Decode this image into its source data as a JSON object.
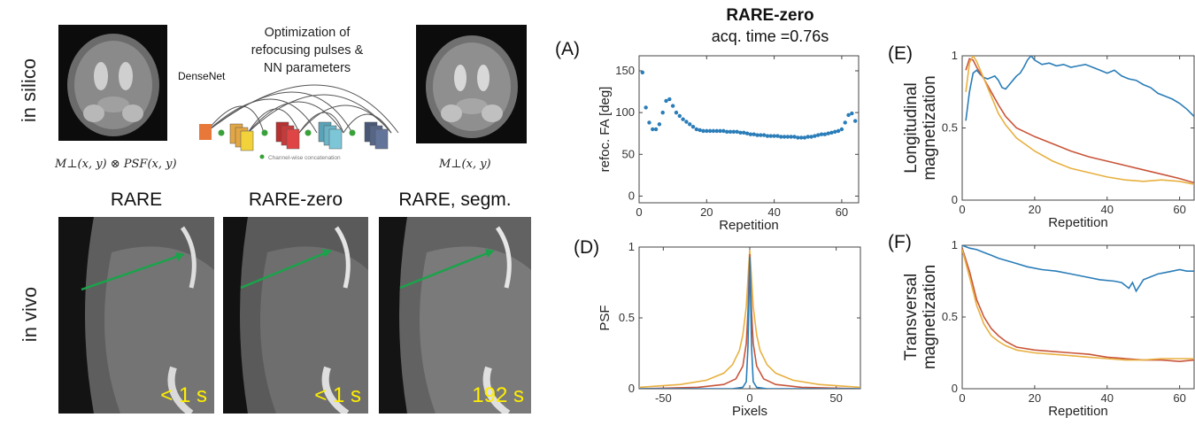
{
  "left": {
    "row_labels": {
      "silico": "in silico",
      "vivo": "in vivo"
    },
    "silico": {
      "input_formula": "M⊥(x, y) ⊗ PSF(x, y)",
      "output_formula": "M⊥(x, y)",
      "densenet_label": "DenseNet",
      "opt_title_l1": "Optimization of",
      "opt_title_l2": "refocusing pulses &",
      "opt_title_l3": "NN parameters",
      "concat_note": "Channel-wise concatenation"
    },
    "vivo": {
      "panels": [
        {
          "title": "RARE",
          "time": "< 1 s"
        },
        {
          "title": "RARE-zero",
          "time": "< 1 s"
        },
        {
          "title": "RARE, segm.",
          "time": "192 s"
        }
      ],
      "time_color": "#ffee00",
      "arrow_color": "#1aa34a"
    }
  },
  "right": {
    "title": "RARE-zero",
    "subtitle": "acq. time =0.76s",
    "panel_labels": {
      "A": "(A)",
      "D": "(D)",
      "E": "(E)",
      "F": "(F)"
    },
    "colors": {
      "blue": "#2a7db8",
      "red": "#c9553a",
      "yellow": "#e8b040"
    }
  },
  "chart_data": [
    {
      "id": "A",
      "type": "scatter",
      "xlabel": "Repetition",
      "ylabel": "refoc. FA [deg]",
      "xlim": [
        0,
        65
      ],
      "ylim": [
        -8,
        168
      ],
      "xticks": [
        0,
        20,
        40,
        60
      ],
      "yticks": [
        0,
        50,
        100,
        150
      ],
      "grid": false,
      "series": [
        {
          "x": [
            1,
            2,
            3,
            4,
            5,
            6,
            7,
            8,
            9,
            10,
            11,
            12,
            13,
            14,
            15,
            16,
            17,
            18,
            19,
            20,
            21,
            22,
            23,
            24,
            25,
            26,
            27,
            28,
            29,
            30,
            31,
            32,
            33,
            34,
            35,
            36,
            37,
            38,
            39,
            40,
            41,
            42,
            43,
            44,
            45,
            46,
            47,
            48,
            49,
            50,
            51,
            52,
            53,
            54,
            55,
            56,
            57,
            58,
            59,
            60,
            61,
            62,
            63,
            64
          ],
          "y": [
            148,
            106,
            88,
            80,
            80,
            86,
            100,
            114,
            116,
            108,
            100,
            96,
            92,
            89,
            86,
            83,
            80,
            79,
            78,
            78,
            78,
            78,
            78,
            78,
            78,
            77,
            77,
            77,
            77,
            76,
            76,
            75,
            74,
            74,
            73,
            73,
            73,
            72,
            72,
            72,
            72,
            71,
            71,
            71,
            71,
            71,
            70,
            70,
            70,
            71,
            71,
            72,
            73,
            74,
            74,
            75,
            76,
            77,
            78,
            80,
            88,
            97,
            99,
            90
          ]
        }
      ]
    },
    {
      "id": "D",
      "type": "line",
      "xlabel": "Pixels",
      "ylabel": "PSF",
      "xlim": [
        -64,
        64
      ],
      "ylim": [
        0,
        1
      ],
      "xticks": [
        -50,
        0,
        50
      ],
      "yticks": [
        0,
        0.5,
        1
      ],
      "grid": false,
      "series": [
        {
          "color": "yellow",
          "x": [
            -64,
            -40,
            -25,
            -15,
            -10,
            -6,
            -4,
            -2,
            -1,
            0,
            1,
            2,
            4,
            6,
            10,
            15,
            25,
            40,
            64
          ],
          "y": [
            0.01,
            0.03,
            0.06,
            0.11,
            0.17,
            0.27,
            0.38,
            0.58,
            0.78,
            0.98,
            0.78,
            0.58,
            0.38,
            0.27,
            0.17,
            0.11,
            0.06,
            0.03,
            0.01
          ]
        },
        {
          "color": "red",
          "x": [
            -64,
            -30,
            -15,
            -8,
            -4,
            -2,
            -1,
            0,
            1,
            2,
            4,
            8,
            15,
            30,
            64
          ],
          "y": [
            0.0,
            0.01,
            0.03,
            0.07,
            0.16,
            0.32,
            0.55,
            0.95,
            0.55,
            0.32,
            0.16,
            0.07,
            0.03,
            0.01,
            0.0
          ]
        },
        {
          "color": "blue",
          "x": [
            -64,
            -10,
            -4,
            -2,
            -1,
            0,
            1,
            2,
            4,
            10,
            64
          ],
          "y": [
            0.0,
            0.0,
            0.01,
            0.05,
            0.3,
            0.93,
            0.3,
            0.05,
            0.01,
            0.0,
            0.0
          ]
        }
      ]
    },
    {
      "id": "E",
      "type": "line",
      "xlabel": "Repetition",
      "ylabel": "Longitudinal magnetization",
      "xlim": [
        0,
        64
      ],
      "ylim": [
        0,
        1
      ],
      "xticks": [
        0,
        20,
        40,
        60
      ],
      "yticks": [
        0,
        0.5,
        1
      ],
      "grid": false,
      "series": [
        {
          "color": "blue",
          "x": [
            1,
            2,
            3,
            4,
            5,
            6,
            7,
            8,
            9,
            10,
            11,
            12,
            13,
            14,
            15,
            16,
            17,
            18,
            19,
            20,
            22,
            24,
            26,
            28,
            30,
            32,
            34,
            36,
            38,
            40,
            42,
            44,
            46,
            48,
            50,
            52,
            54,
            56,
            58,
            60,
            62,
            64
          ],
          "y": [
            0.55,
            0.75,
            0.88,
            0.9,
            0.87,
            0.85,
            0.84,
            0.85,
            0.86,
            0.83,
            0.78,
            0.77,
            0.8,
            0.83,
            0.86,
            0.88,
            0.92,
            0.97,
            1.0,
            0.97,
            0.94,
            0.95,
            0.93,
            0.94,
            0.92,
            0.93,
            0.94,
            0.92,
            0.9,
            0.88,
            0.9,
            0.86,
            0.84,
            0.83,
            0.8,
            0.78,
            0.74,
            0.72,
            0.7,
            0.67,
            0.63,
            0.58
          ]
        },
        {
          "color": "red",
          "x": [
            1,
            2,
            3,
            4,
            6,
            8,
            10,
            12,
            15,
            20,
            25,
            30,
            35,
            40,
            45,
            50,
            55,
            60,
            64
          ],
          "y": [
            0.9,
            0.98,
            0.97,
            0.92,
            0.84,
            0.75,
            0.66,
            0.58,
            0.5,
            0.44,
            0.39,
            0.34,
            0.3,
            0.27,
            0.24,
            0.21,
            0.18,
            0.15,
            0.12
          ]
        },
        {
          "color": "yellow",
          "x": [
            1,
            2,
            3,
            4,
            6,
            8,
            10,
            12,
            15,
            20,
            25,
            30,
            35,
            40,
            45,
            50,
            55,
            60,
            64
          ],
          "y": [
            0.75,
            0.95,
            1.0,
            0.96,
            0.84,
            0.72,
            0.6,
            0.52,
            0.43,
            0.34,
            0.27,
            0.22,
            0.19,
            0.16,
            0.14,
            0.13,
            0.14,
            0.13,
            0.11
          ]
        }
      ]
    },
    {
      "id": "F",
      "type": "line",
      "xlabel": "Repetition",
      "ylabel": "Transversal magnetization",
      "xlim": [
        0,
        64
      ],
      "ylim": [
        0,
        1
      ],
      "xticks": [
        0,
        20,
        40,
        60
      ],
      "yticks": [
        0,
        0.5,
        1
      ],
      "grid": false,
      "series": [
        {
          "color": "blue",
          "x": [
            0,
            2,
            4,
            6,
            8,
            10,
            14,
            18,
            22,
            26,
            30,
            34,
            38,
            42,
            44,
            46,
            47,
            48,
            49,
            50,
            52,
            54,
            56,
            58,
            60,
            62,
            64
          ],
          "y": [
            1.0,
            0.98,
            0.97,
            0.95,
            0.93,
            0.91,
            0.88,
            0.85,
            0.83,
            0.82,
            0.8,
            0.78,
            0.76,
            0.75,
            0.74,
            0.7,
            0.74,
            0.68,
            0.72,
            0.76,
            0.78,
            0.8,
            0.81,
            0.82,
            0.83,
            0.82,
            0.82
          ]
        },
        {
          "color": "red",
          "x": [
            0,
            2,
            4,
            6,
            8,
            10,
            12,
            15,
            20,
            25,
            30,
            35,
            40,
            45,
            50,
            55,
            60,
            64
          ],
          "y": [
            0.98,
            0.82,
            0.62,
            0.5,
            0.42,
            0.37,
            0.33,
            0.29,
            0.27,
            0.26,
            0.25,
            0.24,
            0.22,
            0.21,
            0.2,
            0.2,
            0.19,
            0.2
          ]
        },
        {
          "color": "yellow",
          "x": [
            0,
            2,
            4,
            6,
            8,
            10,
            12,
            15,
            20,
            25,
            30,
            35,
            40,
            45,
            50,
            55,
            60,
            64
          ],
          "y": [
            0.97,
            0.78,
            0.58,
            0.45,
            0.37,
            0.33,
            0.3,
            0.27,
            0.25,
            0.24,
            0.23,
            0.22,
            0.21,
            0.2,
            0.2,
            0.21,
            0.21,
            0.21
          ]
        }
      ]
    }
  ]
}
